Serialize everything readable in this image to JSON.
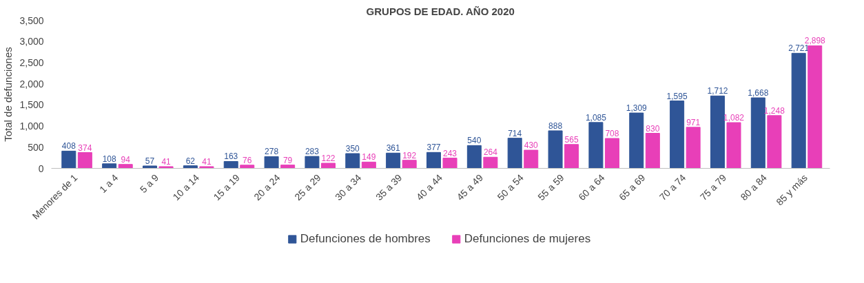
{
  "chart_data": {
    "type": "bar",
    "title": "GRUPOS DE EDAD. AÑO 2020",
    "ylabel": "Total de defunciones",
    "categories": [
      "Menores de 1",
      "1 a 4",
      "5 a 9",
      "10 a 14",
      "15 a 19",
      "20 a 24",
      "25 a 29",
      "30 a 34",
      "35 a 39",
      "40 a 44",
      "45 a 49",
      "50 a 54",
      "55 a 59",
      "60 a 64",
      "65 a 69",
      "70 a 74",
      "75 a 79",
      "80 a 84",
      "85 y más"
    ],
    "series": [
      {
        "name": "Defunciones de hombres",
        "color": "#2f5597",
        "values": [
          408,
          108,
          57,
          62,
          163,
          278,
          283,
          350,
          361,
          377,
          540,
          714,
          888,
          1085,
          1309,
          1595,
          1712,
          1668,
          2721
        ],
        "value_labels": [
          "408",
          "108",
          "57",
          "62",
          "163",
          "278",
          "283",
          "350",
          "361",
          "377",
          "540",
          "714",
          "888",
          "1,085",
          "1,309",
          "1,595",
          "1,712",
          "1,668",
          "2,721"
        ]
      },
      {
        "name": "Defunciones de mujeres",
        "color": "#e83fb8",
        "values": [
          374,
          94,
          41,
          41,
          76,
          79,
          122,
          149,
          192,
          243,
          264,
          430,
          565,
          708,
          830,
          971,
          1082,
          1248,
          2898
        ],
        "value_labels": [
          "374",
          "94",
          "41",
          "41",
          "76",
          "79",
          "122",
          "149",
          "192",
          "243",
          "264",
          "430",
          "565",
          "708",
          "830",
          "971",
          "1,082",
          "1,248",
          "2,898"
        ]
      }
    ],
    "ylim": [
      0,
      3500
    ],
    "yticks": [
      {
        "value": 0,
        "label": "0"
      },
      {
        "value": 500,
        "label": "500"
      },
      {
        "value": 1000,
        "label": "1,000"
      },
      {
        "value": 1500,
        "label": "1,500"
      },
      {
        "value": 2000,
        "label": "2,000"
      },
      {
        "value": 2500,
        "label": "2,500"
      },
      {
        "value": 3000,
        "label": "3,000"
      },
      {
        "value": 3500,
        "label": "3,500"
      }
    ],
    "grid": false,
    "legend": "bottom"
  }
}
